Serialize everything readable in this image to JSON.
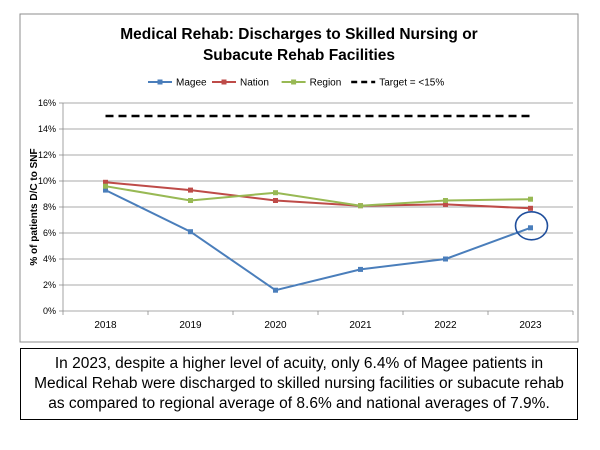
{
  "chart_data": {
    "type": "line",
    "title_lines": [
      "Medical Rehab: Discharges to Skilled Nursing or",
      "Subacute Rehab Facilities"
    ],
    "ylabel": "% of patients D/C to SNF",
    "xlabel": "",
    "categories": [
      "2018",
      "2019",
      "2020",
      "2021",
      "2022",
      "2023"
    ],
    "y_ticks": [
      "0%",
      "2%",
      "4%",
      "6%",
      "8%",
      "10%",
      "12%",
      "14%",
      "16%"
    ],
    "ylim": [
      0,
      16
    ],
    "grid": "horizontal",
    "legend_position": "top",
    "series": [
      {
        "name": "Magee",
        "color": "#4a7ebb",
        "values": [
          9.3,
          6.1,
          1.6,
          3.2,
          4.0,
          6.4
        ]
      },
      {
        "name": "Nation",
        "color": "#be4b48",
        "values": [
          9.9,
          9.3,
          8.5,
          8.1,
          8.2,
          7.9
        ]
      },
      {
        "name": "Region",
        "color": "#98b954",
        "values": [
          9.6,
          8.5,
          9.1,
          8.1,
          8.5,
          8.6
        ]
      }
    ],
    "target": {
      "label": "Target = <15%",
      "value": 15,
      "color": "#000000"
    },
    "highlight": {
      "series": "Magee",
      "category": "2023",
      "color": "#1f4e9c"
    }
  },
  "caption": "In 2023, despite a higher level of acuity, only 6.4% of Magee patients in Medical Rehab were discharged to skilled nursing facilities or subacute rehab as compared to regional average of 8.6% and national averages of 7.9%."
}
